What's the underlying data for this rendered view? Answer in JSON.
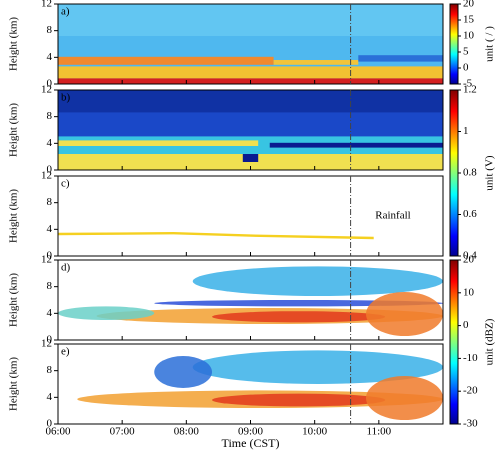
{
  "chart_data": [
    {
      "type": "heatmap",
      "panel_label": "a)",
      "ylabel": "Height (km)",
      "ylim": [
        0,
        12
      ],
      "yticks": [
        0,
        4,
        8,
        12
      ],
      "xlim": [
        6,
        12
      ],
      "vline_x": 10.56,
      "colorbar": {
        "label": "unit ( / )",
        "lim": [
          -5,
          20
        ],
        "ticks": [
          -5,
          0,
          5,
          10,
          15,
          20
        ]
      }
    },
    {
      "type": "heatmap",
      "panel_label": "b)",
      "ylabel": "Height (km)",
      "ylim": [
        0,
        12
      ],
      "yticks": [
        0,
        4,
        8,
        12
      ],
      "xlim": [
        6,
        12
      ],
      "vline_x": 10.56,
      "colorbar": {
        "label": "unit (V)",
        "lim": [
          0.4,
          1.2
        ],
        "ticks": [
          0.4,
          0.6,
          0.8,
          1,
          1.2
        ]
      }
    },
    {
      "type": "heatmap",
      "panel_label": "c)",
      "ylabel": "Height (km)",
      "ylim": [
        0,
        12
      ],
      "yticks": [
        0,
        4,
        8,
        12
      ],
      "xlim": [
        6,
        12
      ],
      "vline_x": 10.56,
      "annotation": "Rainfall"
    },
    {
      "type": "heatmap",
      "panel_label": "d)",
      "ylabel": "Height (km)",
      "ylim": [
        0,
        12
      ],
      "yticks": [
        0,
        4,
        8,
        12
      ],
      "xlim": [
        6,
        12
      ],
      "vline_x": 10.56,
      "colorbar": {
        "label": "unit (dBZ)",
        "lim": [
          -30,
          20
        ],
        "ticks": [
          -30,
          -20,
          -10,
          0,
          10,
          20
        ]
      }
    },
    {
      "type": "heatmap",
      "panel_label": "e)",
      "ylabel": "Height (km)",
      "ylim": [
        0,
        12
      ],
      "yticks": [
        0,
        4,
        8,
        12
      ],
      "xlim": [
        6,
        12
      ],
      "vline_x": 10.56,
      "xlabel": "Time (CST)",
      "xticks": [
        {
          "value": 6,
          "label": "06:00"
        },
        {
          "value": 7,
          "label": "07:00"
        },
        {
          "value": 8,
          "label": "08:00"
        },
        {
          "value": 9,
          "label": "09:00"
        },
        {
          "value": 10,
          "label": "10:00"
        },
        {
          "value": 11,
          "label": "11:00"
        }
      ]
    }
  ]
}
